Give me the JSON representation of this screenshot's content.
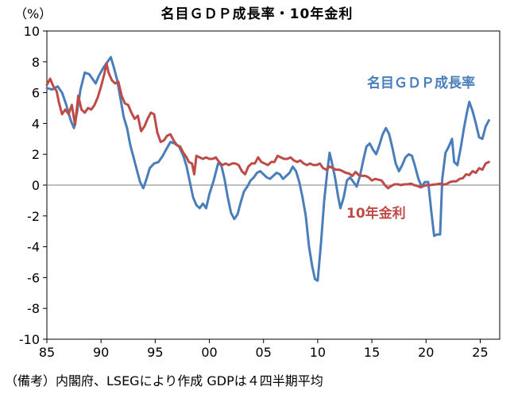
{
  "chart_data": {
    "type": "line",
    "title": "名目ＧＤＰ成長率・10年金利",
    "ylabel": "（%）",
    "ylim": [
      -10,
      10
    ],
    "yticks": [
      10,
      8,
      6,
      4,
      2,
      0,
      -2,
      -4,
      -6,
      -8,
      -10
    ],
    "xlim": [
      1985,
      2026.8
    ],
    "xticks": [
      {
        "value": 1985,
        "label": "85"
      },
      {
        "value": 1990,
        "label": "90"
      },
      {
        "value": 1995,
        "label": "95"
      },
      {
        "value": 2000,
        "label": "00"
      },
      {
        "value": 2005,
        "label": "05"
      },
      {
        "value": 2010,
        "label": "10"
      },
      {
        "value": 2015,
        "label": "15"
      },
      {
        "value": 2020,
        "label": "20"
      },
      {
        "value": 2025,
        "label": "25"
      }
    ],
    "grid": false,
    "note": "（備考）内閣府、LSEGにより作成 GDPは４四半期平均",
    "series": [
      {
        "name": "名目ＧＤＰ成長率",
        "color": "#4a7ebb",
        "points": [
          [
            1985.0,
            6.3
          ],
          [
            1985.5,
            6.2
          ],
          [
            1986.0,
            6.4
          ],
          [
            1986.4,
            6.0
          ],
          [
            1986.8,
            5.2
          ],
          [
            1987.2,
            4.2
          ],
          [
            1987.5,
            3.7
          ],
          [
            1987.8,
            4.8
          ],
          [
            1988.1,
            6.2
          ],
          [
            1988.5,
            7.3
          ],
          [
            1988.9,
            7.2
          ],
          [
            1989.2,
            6.9
          ],
          [
            1989.5,
            6.6
          ],
          [
            1989.8,
            7.1
          ],
          [
            1990.2,
            7.6
          ],
          [
            1990.6,
            8.0
          ],
          [
            1990.9,
            8.3
          ],
          [
            1991.2,
            7.6
          ],
          [
            1991.5,
            6.8
          ],
          [
            1991.8,
            5.6
          ],
          [
            1992.1,
            4.4
          ],
          [
            1992.4,
            3.7
          ],
          [
            1992.7,
            2.6
          ],
          [
            1993.0,
            1.8
          ],
          [
            1993.3,
            1.0
          ],
          [
            1993.6,
            0.2
          ],
          [
            1993.9,
            -0.2
          ],
          [
            1994.2,
            0.4
          ],
          [
            1994.5,
            1.1
          ],
          [
            1994.9,
            1.4
          ],
          [
            1995.3,
            1.5
          ],
          [
            1995.7,
            1.9
          ],
          [
            1996.0,
            2.3
          ],
          [
            1996.4,
            2.8
          ],
          [
            1996.8,
            2.7
          ],
          [
            1997.2,
            2.5
          ],
          [
            1997.6,
            1.9
          ],
          [
            1997.9,
            1.2
          ],
          [
            1998.2,
            0.2
          ],
          [
            1998.5,
            -0.8
          ],
          [
            1998.8,
            -1.3
          ],
          [
            1999.1,
            -1.5
          ],
          [
            1999.4,
            -1.2
          ],
          [
            1999.7,
            -1.5
          ],
          [
            2000.0,
            -0.6
          ],
          [
            2000.4,
            0.3
          ],
          [
            2000.8,
            1.4
          ],
          [
            2001.1,
            1.3
          ],
          [
            2001.4,
            0.4
          ],
          [
            2001.7,
            -0.8
          ],
          [
            2002.0,
            -1.8
          ],
          [
            2002.3,
            -2.2
          ],
          [
            2002.6,
            -1.9
          ],
          [
            2002.9,
            -1.1
          ],
          [
            2003.2,
            -0.4
          ],
          [
            2003.5,
            -0.1
          ],
          [
            2003.8,
            0.3
          ],
          [
            2004.1,
            0.5
          ],
          [
            2004.4,
            0.8
          ],
          [
            2004.7,
            0.9
          ],
          [
            2005.0,
            0.7
          ],
          [
            2005.3,
            0.5
          ],
          [
            2005.6,
            0.4
          ],
          [
            2005.9,
            0.6
          ],
          [
            2006.2,
            0.8
          ],
          [
            2006.5,
            0.7
          ],
          [
            2006.8,
            0.4
          ],
          [
            2007.1,
            0.6
          ],
          [
            2007.4,
            0.8
          ],
          [
            2007.7,
            1.2
          ],
          [
            2008.0,
            0.9
          ],
          [
            2008.3,
            0.2
          ],
          [
            2008.6,
            -0.8
          ],
          [
            2008.9,
            -2.0
          ],
          [
            2009.2,
            -4.0
          ],
          [
            2009.5,
            -5.3
          ],
          [
            2009.75,
            -6.1
          ],
          [
            2010.0,
            -6.2
          ],
          [
            2010.3,
            -3.8
          ],
          [
            2010.6,
            -1.0
          ],
          [
            2010.9,
            1.0
          ],
          [
            2011.1,
            2.1
          ],
          [
            2011.3,
            1.5
          ],
          [
            2011.6,
            0.5
          ],
          [
            2011.9,
            -0.8
          ],
          [
            2012.1,
            -1.5
          ],
          [
            2012.4,
            -0.8
          ],
          [
            2012.7,
            0.3
          ],
          [
            2013.0,
            0.5
          ],
          [
            2013.3,
            0.2
          ],
          [
            2013.6,
            -0.1
          ],
          [
            2013.9,
            0.6
          ],
          [
            2014.2,
            1.6
          ],
          [
            2014.5,
            2.5
          ],
          [
            2014.8,
            2.7
          ],
          [
            2015.1,
            2.3
          ],
          [
            2015.4,
            2.0
          ],
          [
            2015.7,
            2.6
          ],
          [
            2016.0,
            3.3
          ],
          [
            2016.3,
            3.7
          ],
          [
            2016.6,
            3.3
          ],
          [
            2016.9,
            2.4
          ],
          [
            2017.2,
            1.4
          ],
          [
            2017.5,
            0.9
          ],
          [
            2017.8,
            1.3
          ],
          [
            2018.1,
            1.8
          ],
          [
            2018.4,
            2.0
          ],
          [
            2018.7,
            1.9
          ],
          [
            2019.0,
            1.2
          ],
          [
            2019.3,
            0.4
          ],
          [
            2019.6,
            -0.1
          ],
          [
            2019.9,
            0.2
          ],
          [
            2020.2,
            0.2
          ],
          [
            2020.5,
            -1.8
          ],
          [
            2020.75,
            -3.3
          ],
          [
            2021.0,
            -3.2
          ],
          [
            2021.3,
            -3.2
          ],
          [
            2021.5,
            0.4
          ],
          [
            2021.8,
            2.1
          ],
          [
            2022.1,
            2.5
          ],
          [
            2022.4,
            3.0
          ],
          [
            2022.6,
            1.5
          ],
          [
            2022.9,
            1.3
          ],
          [
            2023.2,
            2.4
          ],
          [
            2023.5,
            3.7
          ],
          [
            2023.8,
            4.8
          ],
          [
            2024.0,
            5.4
          ],
          [
            2024.3,
            4.8
          ],
          [
            2024.6,
            4.0
          ],
          [
            2024.9,
            3.1
          ],
          [
            2025.2,
            3.0
          ],
          [
            2025.5,
            3.8
          ],
          [
            2025.8,
            4.2
          ]
        ]
      },
      {
        "name": "10年金利",
        "color": "#be4b48",
        "points": [
          [
            1985.0,
            6.5
          ],
          [
            1985.3,
            6.9
          ],
          [
            1985.6,
            6.4
          ],
          [
            1985.9,
            6.1
          ],
          [
            1986.1,
            5.4
          ],
          [
            1986.4,
            4.6
          ],
          [
            1986.7,
            4.9
          ],
          [
            1987.0,
            4.6
          ],
          [
            1987.3,
            5.2
          ],
          [
            1987.6,
            3.9
          ],
          [
            1987.9,
            5.8
          ],
          [
            1988.2,
            4.9
          ],
          [
            1988.5,
            4.7
          ],
          [
            1988.8,
            5.0
          ],
          [
            1989.1,
            4.9
          ],
          [
            1989.4,
            5.2
          ],
          [
            1989.7,
            5.7
          ],
          [
            1990.0,
            6.4
          ],
          [
            1990.3,
            7.2
          ],
          [
            1990.5,
            7.9
          ],
          [
            1990.7,
            7.3
          ],
          [
            1991.0,
            6.8
          ],
          [
            1991.3,
            6.6
          ],
          [
            1991.6,
            6.7
          ],
          [
            1991.9,
            5.8
          ],
          [
            1992.2,
            5.3
          ],
          [
            1992.5,
            5.2
          ],
          [
            1992.8,
            4.7
          ],
          [
            1993.1,
            4.3
          ],
          [
            1993.4,
            4.5
          ],
          [
            1993.7,
            3.5
          ],
          [
            1994.0,
            3.8
          ],
          [
            1994.3,
            4.3
          ],
          [
            1994.6,
            4.7
          ],
          [
            1994.9,
            4.6
          ],
          [
            1995.2,
            3.4
          ],
          [
            1995.5,
            2.8
          ],
          [
            1995.8,
            2.9
          ],
          [
            1996.1,
            3.2
          ],
          [
            1996.4,
            3.3
          ],
          [
            1996.7,
            2.9
          ],
          [
            1997.0,
            2.6
          ],
          [
            1997.3,
            2.5
          ],
          [
            1997.6,
            2.1
          ],
          [
            1997.9,
            1.8
          ],
          [
            1998.1,
            1.5
          ],
          [
            1998.4,
            1.4
          ],
          [
            1998.6,
            0.7
          ],
          [
            1998.8,
            1.9
          ],
          [
            1999.1,
            1.8
          ],
          [
            1999.4,
            1.7
          ],
          [
            1999.7,
            1.8
          ],
          [
            2000.0,
            1.7
          ],
          [
            2000.3,
            1.7
          ],
          [
            2000.6,
            1.8
          ],
          [
            2000.9,
            1.5
          ],
          [
            2001.2,
            1.3
          ],
          [
            2001.5,
            1.4
          ],
          [
            2001.8,
            1.3
          ],
          [
            2002.1,
            1.4
          ],
          [
            2002.4,
            1.4
          ],
          [
            2002.7,
            1.3
          ],
          [
            2003.0,
            0.9
          ],
          [
            2003.3,
            0.7
          ],
          [
            2003.6,
            1.2
          ],
          [
            2003.9,
            1.4
          ],
          [
            2004.2,
            1.4
          ],
          [
            2004.5,
            1.8
          ],
          [
            2004.8,
            1.5
          ],
          [
            2005.1,
            1.4
          ],
          [
            2005.4,
            1.3
          ],
          [
            2005.7,
            1.5
          ],
          [
            2006.0,
            1.5
          ],
          [
            2006.3,
            1.9
          ],
          [
            2006.6,
            1.8
          ],
          [
            2006.9,
            1.7
          ],
          [
            2007.2,
            1.7
          ],
          [
            2007.5,
            1.8
          ],
          [
            2007.8,
            1.6
          ],
          [
            2008.1,
            1.5
          ],
          [
            2008.4,
            1.6
          ],
          [
            2008.7,
            1.4
          ],
          [
            2009.0,
            1.3
          ],
          [
            2009.3,
            1.4
          ],
          [
            2009.6,
            1.3
          ],
          [
            2009.9,
            1.3
          ],
          [
            2010.2,
            1.4
          ],
          [
            2010.5,
            1.1
          ],
          [
            2010.8,
            1.0
          ],
          [
            2011.1,
            1.2
          ],
          [
            2011.4,
            1.1
          ],
          [
            2011.7,
            1.0
          ],
          [
            2012.0,
            1.0
          ],
          [
            2012.3,
            0.9
          ],
          [
            2012.6,
            0.8
          ],
          [
            2012.9,
            0.75
          ],
          [
            2013.2,
            0.6
          ],
          [
            2013.5,
            0.85
          ],
          [
            2013.8,
            0.65
          ],
          [
            2014.1,
            0.6
          ],
          [
            2014.4,
            0.6
          ],
          [
            2014.7,
            0.5
          ],
          [
            2015.0,
            0.3
          ],
          [
            2015.3,
            0.4
          ],
          [
            2015.6,
            0.35
          ],
          [
            2015.9,
            0.3
          ],
          [
            2016.2,
            0.0
          ],
          [
            2016.5,
            -0.2
          ],
          [
            2016.8,
            -0.05
          ],
          [
            2017.1,
            0.05
          ],
          [
            2017.4,
            0.05
          ],
          [
            2017.7,
            0.0
          ],
          [
            2018.0,
            0.05
          ],
          [
            2018.3,
            0.05
          ],
          [
            2018.6,
            0.1
          ],
          [
            2018.9,
            0.0
          ],
          [
            2019.2,
            -0.05
          ],
          [
            2019.5,
            -0.15
          ],
          [
            2019.8,
            -0.05
          ],
          [
            2020.1,
            0.0
          ],
          [
            2020.4,
            0.0
          ],
          [
            2020.7,
            0.03
          ],
          [
            2021.0,
            0.05
          ],
          [
            2021.3,
            0.1
          ],
          [
            2021.6,
            0.03
          ],
          [
            2021.9,
            0.07
          ],
          [
            2022.2,
            0.2
          ],
          [
            2022.5,
            0.25
          ],
          [
            2022.8,
            0.25
          ],
          [
            2023.1,
            0.4
          ],
          [
            2023.4,
            0.45
          ],
          [
            2023.7,
            0.7
          ],
          [
            2024.0,
            0.65
          ],
          [
            2024.3,
            0.9
          ],
          [
            2024.6,
            0.8
          ],
          [
            2024.9,
            1.1
          ],
          [
            2025.2,
            1.0
          ],
          [
            2025.5,
            1.4
          ],
          [
            2025.8,
            1.5
          ]
        ]
      }
    ]
  }
}
